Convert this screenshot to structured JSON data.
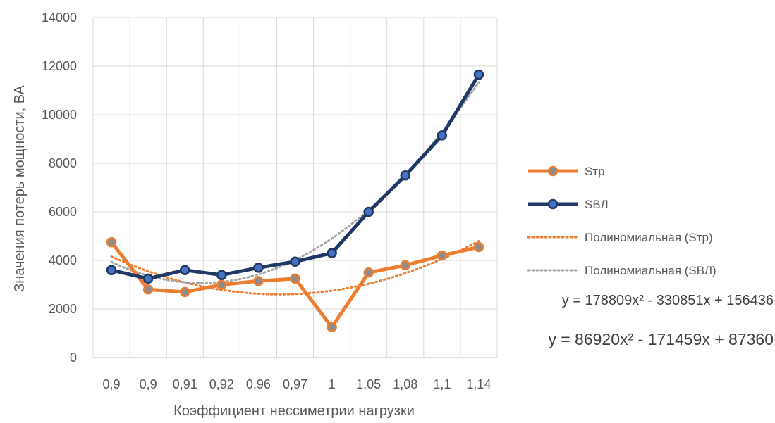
{
  "chart_data": {
    "type": "line",
    "categories": [
      "0,9",
      "0,9",
      "0,91",
      "0,92",
      "0,96",
      "0,97",
      "1",
      "1,05",
      "1,08",
      "1,1",
      "1,14"
    ],
    "series": [
      {
        "name": "Sтр",
        "values": [
          4750,
          2800,
          2700,
          3000,
          3150,
          3250,
          1250,
          3500,
          3800,
          4200,
          4550
        ],
        "color": "#ED7D31",
        "marker_fill": "#8C8C8C"
      },
      {
        "name": "SВЛ",
        "values": [
          3600,
          3250,
          3600,
          3400,
          3700,
          3950,
          4300,
          6000,
          7500,
          9150,
          11650
        ],
        "color": "#203864",
        "marker_fill": "#4472C4"
      }
    ],
    "trendlines": [
      {
        "name": "Полиномиальная (Sтр)",
        "type": "polynomial",
        "order": 2,
        "of_series": "Sтр",
        "color": "#ED7D31",
        "style": "dotted"
      },
      {
        "name": "Полиномиальная (SВЛ)",
        "type": "polynomial",
        "order": 2,
        "of_series": "SВЛ",
        "color": "#A6A6A6",
        "style": "dotted"
      }
    ],
    "equations": [
      "y = 178809x² - 330851x + 156436",
      "y = 86920x² - 171459x + 87360"
    ],
    "ylim": [
      0,
      14000
    ],
    "yticks": [
      0,
      2000,
      4000,
      6000,
      8000,
      10000,
      12000,
      14000
    ],
    "xlabel": "Коэффициент нессиметрии нагрузки",
    "ylabel": "Значения потерь мощности, ВА",
    "grid": true,
    "legend_position": "right"
  }
}
